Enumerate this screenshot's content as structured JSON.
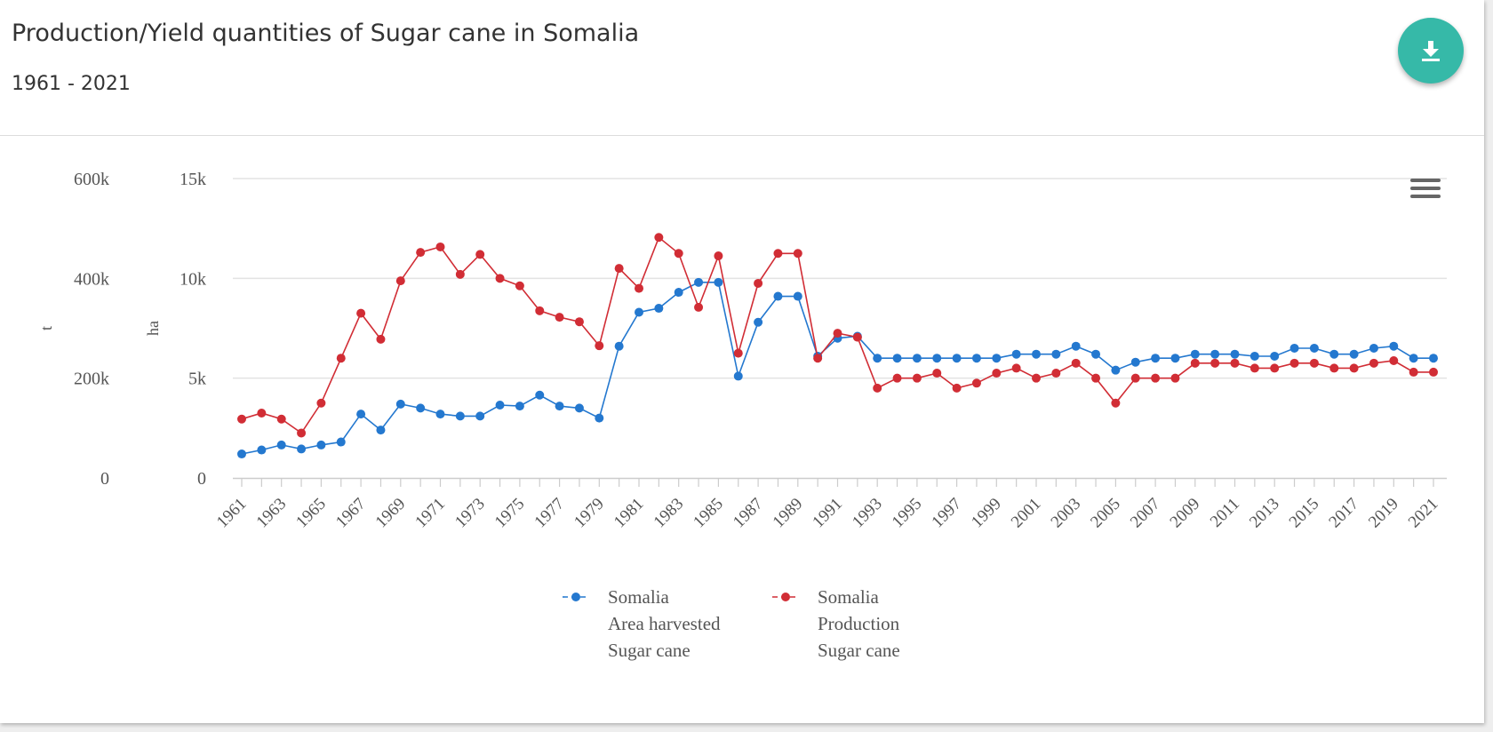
{
  "header": {
    "title": "Production/Yield quantities of Sugar cane in Somalia",
    "subtitle": "1961 - 2021",
    "download_icon": "download-icon"
  },
  "menu_icon": "hamburger-menu-icon",
  "colors": {
    "area": "#2478cf",
    "production": "#d12d35",
    "accent": "#36b9a8"
  },
  "chart_data": {
    "type": "line",
    "x": [
      1961,
      1962,
      1963,
      1964,
      1965,
      1966,
      1967,
      1968,
      1969,
      1970,
      1971,
      1972,
      1973,
      1974,
      1975,
      1976,
      1977,
      1978,
      1979,
      1980,
      1981,
      1982,
      1983,
      1984,
      1985,
      1986,
      1987,
      1988,
      1989,
      1990,
      1991,
      1992,
      1993,
      1994,
      1995,
      1996,
      1997,
      1998,
      1999,
      2000,
      2001,
      2002,
      2003,
      2004,
      2005,
      2006,
      2007,
      2008,
      2009,
      2010,
      2011,
      2012,
      2013,
      2014,
      2015,
      2016,
      2017,
      2018,
      2019,
      2020,
      2021
    ],
    "x_tick_labels": [
      "1961",
      "1963",
      "1965",
      "1967",
      "1969",
      "1971",
      "1973",
      "1975",
      "1977",
      "1979",
      "1981",
      "1983",
      "1985",
      "1987",
      "1989",
      "1991",
      "1993",
      "1995",
      "1997",
      "1999",
      "2001",
      "2003",
      "2005",
      "2007",
      "2009",
      "2011",
      "2013",
      "2015",
      "2017",
      "2019",
      "2021"
    ],
    "axes": {
      "left_outer": {
        "label": "t",
        "range": [
          0,
          600000
        ],
        "ticks": [
          "0",
          "200k",
          "400k",
          "600k"
        ]
      },
      "left_inner": {
        "label": "ha",
        "range": [
          0,
          15000
        ],
        "ticks": [
          "0",
          "5k",
          "10k",
          "15k"
        ]
      }
    },
    "grid": true,
    "legend_position": "bottom",
    "series": [
      {
        "name": "Somalia",
        "name_lines": [
          "Somalia",
          "Area harvested",
          "Sugar cane"
        ],
        "axis": "ha",
        "color": "#2478cf",
        "values": [
          1200,
          1400,
          1650,
          1450,
          1650,
          1800,
          3200,
          2400,
          3700,
          3500,
          3200,
          3100,
          3100,
          3650,
          3600,
          4150,
          3600,
          3500,
          3000,
          6600,
          8300,
          8500,
          9300,
          9800,
          9800,
          5100,
          7800,
          9100,
          9100,
          6100,
          7000,
          7100,
          6000,
          6000,
          6000,
          6000,
          6000,
          6000,
          6000,
          6200,
          6200,
          6200,
          6600,
          6200,
          5400,
          5800,
          6000,
          6000,
          6200,
          6200,
          6200,
          6100,
          6100,
          6500,
          6500,
          6200,
          6200,
          6500,
          6600,
          6000,
          6000
        ]
      },
      {
        "name": "Somalia",
        "name_lines": [
          "Somalia",
          "Production",
          "Sugar cane"
        ],
        "axis": "t",
        "color": "#d12d35",
        "values": [
          118000,
          130000,
          118000,
          90000,
          150000,
          240000,
          330000,
          278000,
          395000,
          452000,
          463000,
          408000,
          448000,
          400000,
          385000,
          335000,
          322000,
          313000,
          265000,
          420000,
          380000,
          482000,
          450000,
          342000,
          445000,
          250000,
          390000,
          450000,
          450000,
          240000,
          290000,
          282000,
          180000,
          200000,
          200000,
          210000,
          180000,
          190000,
          210000,
          220000,
          200000,
          210000,
          230000,
          200000,
          150000,
          200000,
          200000,
          200000,
          230000,
          230000,
          230000,
          220000,
          220000,
          230000,
          230000,
          220000,
          220000,
          230000,
          235000,
          212000,
          212000
        ]
      }
    ]
  }
}
